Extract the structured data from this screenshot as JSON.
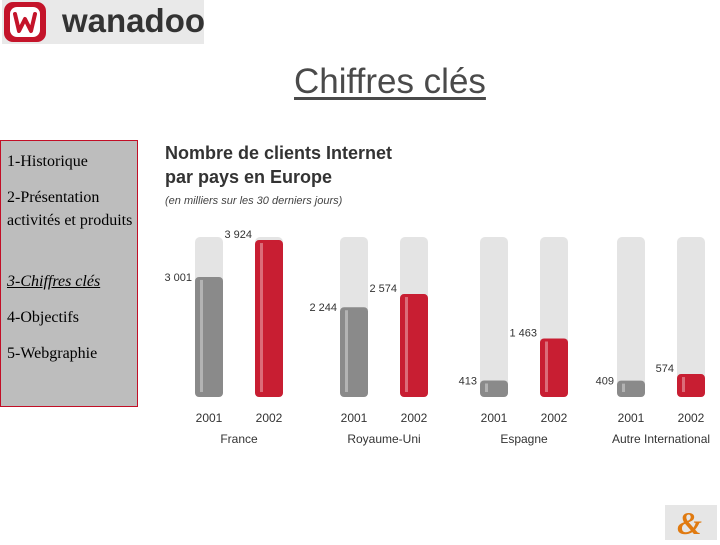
{
  "logo": {
    "text": "wanadoo"
  },
  "title": "Chiffres clés",
  "sidebar": {
    "items": [
      {
        "label": "1-Historique",
        "active": false
      },
      {
        "label": "2-Présentation activités et produits",
        "active": false
      },
      {
        "label": "3-Chiffres clés",
        "active": true
      },
      {
        "label": "4-Objectifs",
        "active": false
      },
      {
        "label": "5-Webgraphie",
        "active": false
      }
    ]
  },
  "colors": {
    "brand_red": "#c4142a",
    "bar_2001": "#8a8a8a",
    "bar_2002": "#c81e32",
    "tube": "#e4e4e4"
  },
  "chart_data": {
    "type": "bar",
    "title": "Nombre de clients Internet par pays en Europe",
    "subtitle": "(en milliers sur les 30 derniers jours)",
    "categories": [
      "France",
      "Royaume-Uni",
      "Espagne",
      "Autre International"
    ],
    "series": [
      {
        "name": "2001",
        "values": [
          3001,
          2244,
          413,
          409
        ],
        "labels": [
          "3 001",
          "2 244",
          "413",
          "409"
        ]
      },
      {
        "name": "2002",
        "values": [
          3924,
          2574,
          1463,
          574
        ],
        "labels": [
          "3 924",
          "2 574",
          "1 463",
          "574"
        ]
      }
    ],
    "ylim": [
      0,
      4000
    ],
    "grid": false
  }
}
